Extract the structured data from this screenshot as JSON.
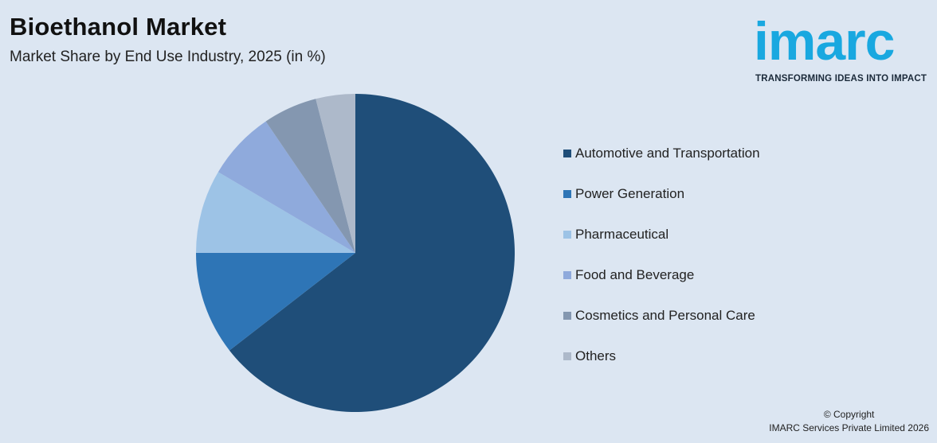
{
  "header": {
    "title": "Bioethanol Market",
    "subtitle": "Market Share by End Use Industry, 2025 (in %)"
  },
  "logo": {
    "word": "imarc",
    "tagline": "TRANSFORMING IDEAS INTO IMPACT",
    "color": "#19a8e0"
  },
  "footer": {
    "line1": "© Copyright",
    "line2": "IMARC Services Private Limited 2026"
  },
  "chart_data": {
    "type": "pie",
    "title": "Market Share by End Use Industry, 2025 (in %)",
    "legend_position": "right",
    "series": [
      {
        "name": "Automotive and Transportation",
        "value": 64.5,
        "color": "#1f4e79"
      },
      {
        "name": "Power Generation",
        "value": 10.5,
        "color": "#2e75b6"
      },
      {
        "name": "Pharmaceutical",
        "value": 8.5,
        "color": "#9dc3e6"
      },
      {
        "name": "Food and Beverage",
        "value": 7.0,
        "color": "#8faadc"
      },
      {
        "name": "Cosmetics and Personal Care",
        "value": 5.5,
        "color": "#8497b0"
      },
      {
        "name": "Others",
        "value": 4.0,
        "color": "#adb9ca"
      }
    ]
  }
}
